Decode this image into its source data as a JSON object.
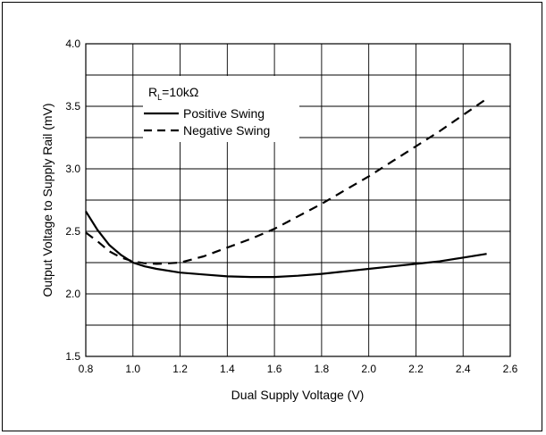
{
  "chart_data": {
    "type": "line",
    "title": "",
    "xlabel": "Dual Supply Voltage (V)",
    "ylabel": "Output Voltage to Supply Rail (mV)",
    "xlim": [
      0.8,
      2.6
    ],
    "ylim": [
      1.5,
      4.0
    ],
    "xticks": [
      "0.8",
      "1.0",
      "1.2",
      "1.4",
      "1.6",
      "1.8",
      "2.0",
      "2.2",
      "2.4",
      "2.6"
    ],
    "yticks": [
      "1.5",
      "2.0",
      "2.5",
      "3.0",
      "3.5",
      "4.0"
    ],
    "grid": true,
    "legend": {
      "placement": "top-left",
      "title_main": "R",
      "title_sub": "L",
      "title_rest": "=10kΩ"
    },
    "series": [
      {
        "name": "Positive Swing",
        "style": "solid",
        "points": [
          [
            0.8,
            2.66
          ],
          [
            0.85,
            2.51
          ],
          [
            0.9,
            2.39
          ],
          [
            0.95,
            2.31
          ],
          [
            1.0,
            2.25
          ],
          [
            1.05,
            2.22
          ],
          [
            1.1,
            2.2
          ],
          [
            1.2,
            2.17
          ],
          [
            1.3,
            2.155
          ],
          [
            1.4,
            2.14
          ],
          [
            1.5,
            2.135
          ],
          [
            1.6,
            2.135
          ],
          [
            1.7,
            2.145
          ],
          [
            1.8,
            2.16
          ],
          [
            1.9,
            2.18
          ],
          [
            2.0,
            2.2
          ],
          [
            2.1,
            2.22
          ],
          [
            2.2,
            2.24
          ],
          [
            2.3,
            2.26
          ],
          [
            2.4,
            2.29
          ],
          [
            2.5,
            2.32
          ]
        ]
      },
      {
        "name": "Negative Swing",
        "style": "dashed",
        "points": [
          [
            0.8,
            2.49
          ],
          [
            0.85,
            2.42
          ],
          [
            0.9,
            2.34
          ],
          [
            0.95,
            2.29
          ],
          [
            1.0,
            2.26
          ],
          [
            1.05,
            2.245
          ],
          [
            1.1,
            2.24
          ],
          [
            1.2,
            2.25
          ],
          [
            1.3,
            2.3
          ],
          [
            1.4,
            2.37
          ],
          [
            1.5,
            2.44
          ],
          [
            1.6,
            2.52
          ],
          [
            1.7,
            2.62
          ],
          [
            1.8,
            2.72
          ],
          [
            1.9,
            2.83
          ],
          [
            2.0,
            2.94
          ],
          [
            2.1,
            3.06
          ],
          [
            2.2,
            3.18
          ],
          [
            2.3,
            3.3
          ],
          [
            2.4,
            3.43
          ],
          [
            2.5,
            3.56
          ]
        ]
      }
    ],
    "colors": {
      "line": "#000000",
      "grid": "#000000",
      "background": "#ffffff"
    }
  }
}
